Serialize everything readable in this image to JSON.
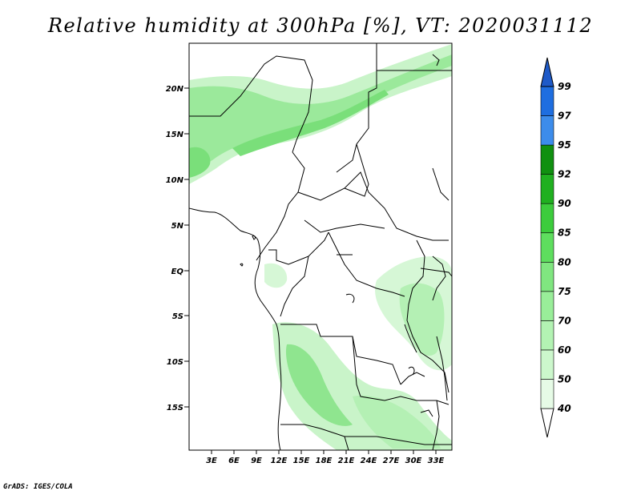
{
  "title": "Relative humidity at 300hPa [%], VT: 2020031112",
  "credit": "GrADS: IGES/COLA",
  "map": {
    "region": "Central Africa",
    "lat_labels": [
      "20N",
      "15N",
      "10N",
      "5N",
      "EQ",
      "5S",
      "10S",
      "15S"
    ],
    "lon_labels": [
      "3E",
      "6E",
      "9E",
      "12E",
      "15E",
      "18E",
      "21E",
      "24E",
      "27E",
      "30E",
      "33E"
    ]
  },
  "colorbar": {
    "labels": [
      "40",
      "50",
      "60",
      "70",
      "75",
      "80",
      "85",
      "90",
      "92",
      "95",
      "97",
      "99"
    ],
    "colors": [
      "#ffffff",
      "#e6fbe6",
      "#ccf7cc",
      "#b3f3b3",
      "#99ee99",
      "#80e680",
      "#5ede5e",
      "#3ccc3c",
      "#20b020",
      "#109010",
      "#3c8ceb",
      "#1e6ee0",
      "#1e5ac8"
    ]
  }
}
